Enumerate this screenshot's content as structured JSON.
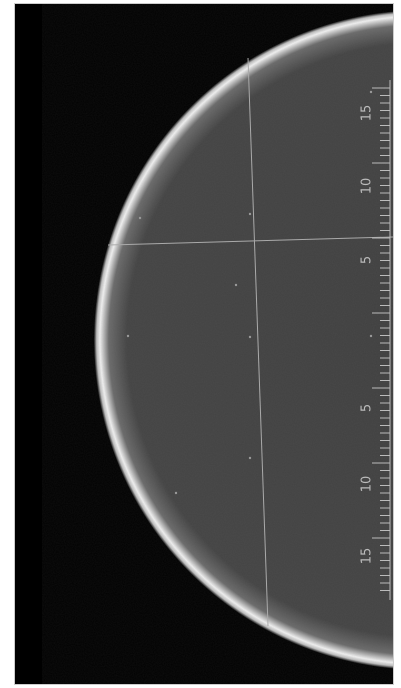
{
  "scale": {
    "upper_labels": [
      "15",
      "10",
      "5"
    ],
    "lower_labels": [
      "5",
      "10",
      "15"
    ]
  }
}
